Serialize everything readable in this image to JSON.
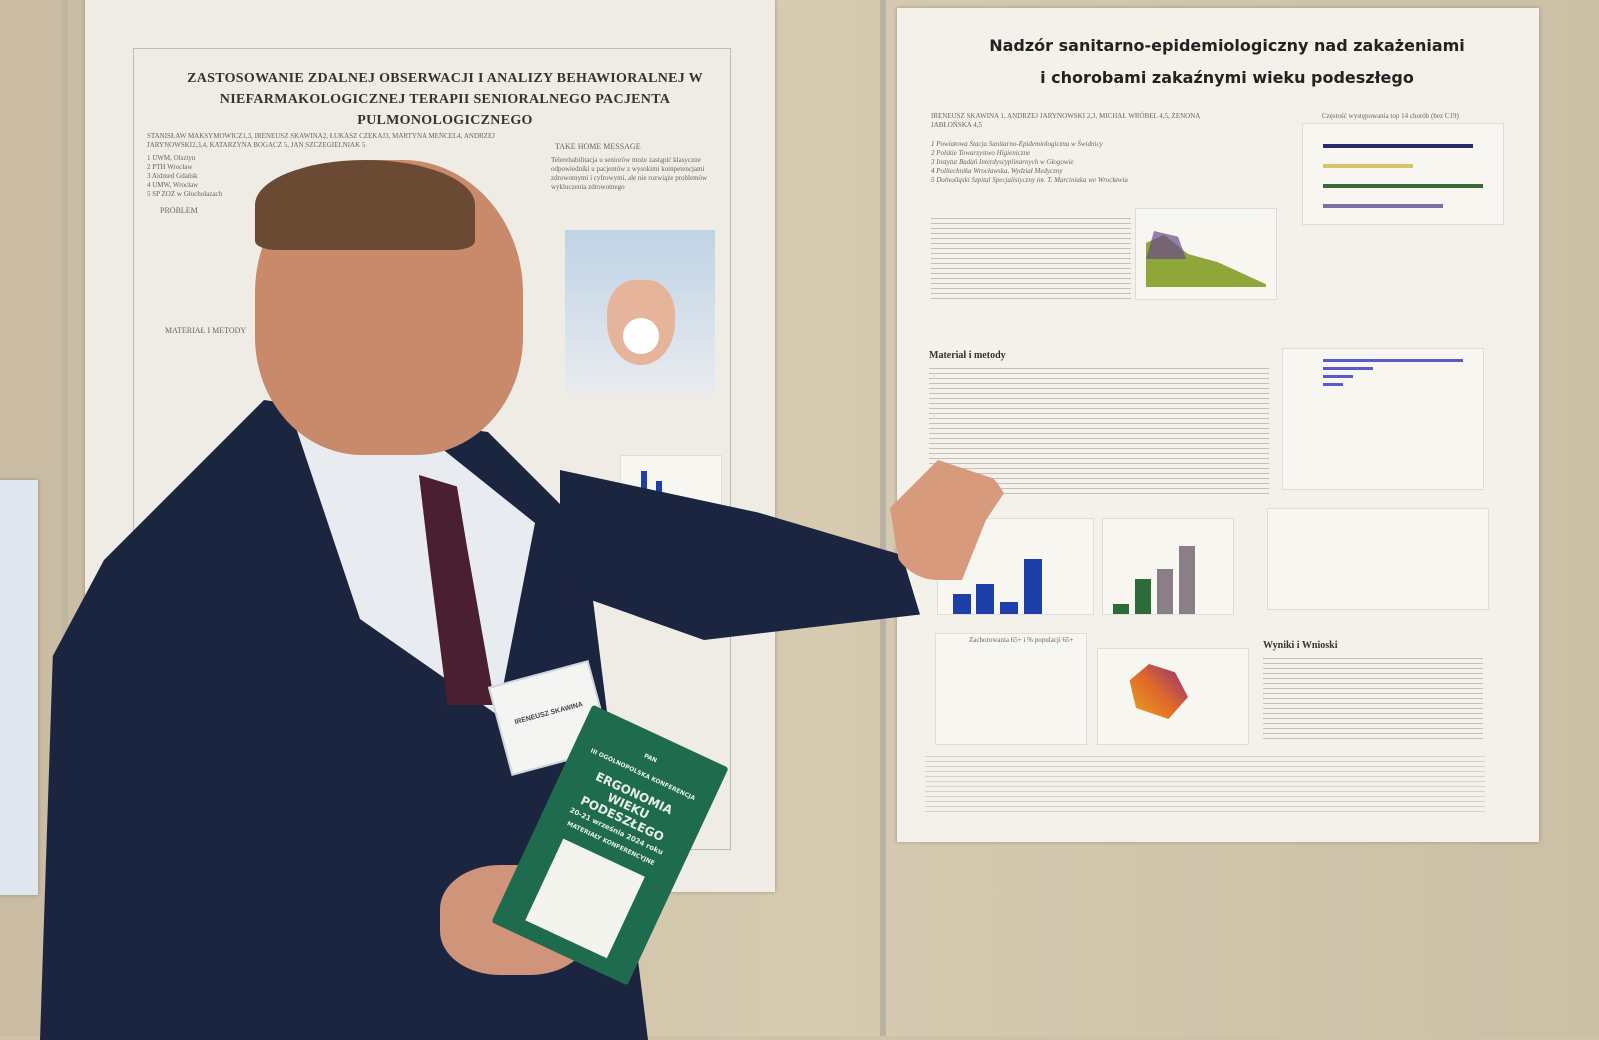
{
  "left_poster": {
    "title": "ZASTOSOWANIE ZDALNEJ OBSERWACJI I ANALIZY BEHAWIORALNEJ W NIEFARMAKOLOGICZNEJ TERAPII SENIORALNEGO PACJENTA PULMONOLOGICZNEGO",
    "authors": "STANISŁAW MAKSYMOWICZ1,3, IRENEUSZ SKAWINA2, ŁUKASZ CZEKAJ3, MARTYNA MENCEL4, ANDRZEJ JARYNOWSKI2,3,4, KATARZYNA BOGACZ 5, JAN SZCZEGIELNIAK 5",
    "affiliations": [
      "1 UWM, Olsztyn",
      "2 PTH Wrocław",
      "3 Aidmed Gdańsk",
      "4 UMW, Wrocław",
      "5 SP ZOZ w Głuchołazach"
    ],
    "take_home_heading": "TAKE HOME MESSAGE",
    "take_home_text": "Telerehabilitacja u seniorów może zastąpić klasyczne odpowiedniki u pacjentów z wysokimi kompetencjami zdrowotnymi i cyfrowymi, ale nie rozwiąże problemów wykluczenia zdrowotnego",
    "problem_heading": "PROBLEM",
    "methods_heading": "MATERIAŁ I METODY"
  },
  "right_poster": {
    "title_line1": "Nadzór sanitarno-epidemiologiczny nad zakażeniami",
    "title_line2": "i chorobami zakaźnymi wieku podeszłego",
    "authors": "IRENEUSZ SKAWINA 1, ANDRZEJ JARYNOWSKI 2,3, MICHAŁ WRÓBEL 4,5, ZENONA JABŁOŃSKA 4,5",
    "affiliations": [
      "1 Powiatowa Stacja Sanitarno-Epidemiologiczna w Świdnicy",
      "2 Polskie Towarzystwo Higieniczne",
      "3 Instytut Badań Interdyscyplinarnych w Głogowie",
      "4 Politechnika Wrocławska, Wydział Medyczny",
      "5 Dolnośląski Szpital Specjalistyczny im. T. Marciniaka we Wrocławiu"
    ],
    "methods_heading": "Materiał i metody",
    "results_heading": "Wyniki i Wnioski",
    "chart_top_title": "Częstość występowania top 14 chorób (bez C19)",
    "chart_line_title": "Zachorowania 65+ i % populacji 65+"
  },
  "book": {
    "line1": "III OGÓLNOPOLSKA KONFERENCJA",
    "title1": "ERGONOMIA",
    "title2": "WIEKU",
    "title3": "PODESZŁEGO",
    "dates": "20-21 września 2024 roku",
    "subtitle": "MATERIAŁY KONFERENCYJNE",
    "logo": "PAN"
  },
  "badge": {
    "name": "IRENEUSZ SKAWINA"
  },
  "colors": {
    "wall": "#cfc2a8",
    "suit": "#1c2540",
    "book": "#1f6b4d",
    "chart_blue": "#1f3fa8",
    "chart_green": "#2e6b3a",
    "chart_grey": "#8a7f86"
  }
}
